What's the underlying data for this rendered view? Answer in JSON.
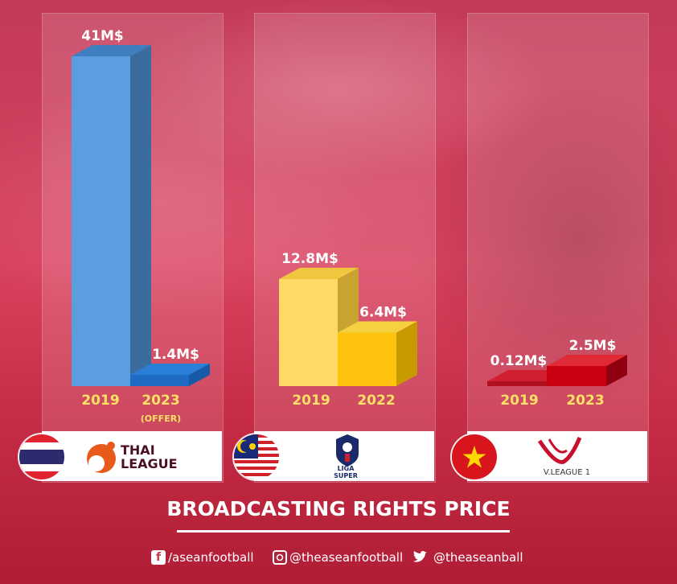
{
  "title": "BROADCASTING RIGHTS PRICE",
  "chart_data": [
    {
      "type": "bar",
      "league": "THAI LEAGUE",
      "categories": [
        "2019",
        "2023"
      ],
      "category_notes": [
        "",
        "(OFFER)"
      ],
      "values": [
        41,
        1.4
      ],
      "value_labels": [
        "41M$",
        "1.4M$"
      ],
      "unit": "M$",
      "colors": {
        "front": "#5b9ee0",
        "top": "#3f7fc0",
        "side": "#3a6d9e",
        "front2": "#1f6bc4",
        "top2": "#2a80d8",
        "side2": "#185aa6"
      }
    },
    {
      "type": "bar",
      "league": "LIGA SUPER",
      "categories": [
        "2019",
        "2022"
      ],
      "category_notes": [
        "",
        ""
      ],
      "values": [
        12.8,
        6.4
      ],
      "value_labels": [
        "12.8M$",
        "6.4M$"
      ],
      "unit": "M$",
      "colors": {
        "front": "#ffd966",
        "top": "#f0c840",
        "side": "#c9a330",
        "front2": "#ffc20e",
        "top2": "#f5d040",
        "side2": "#c99a00"
      }
    },
    {
      "type": "bar",
      "league": "V.LEAGUE 1",
      "categories": [
        "2019",
        "2023"
      ],
      "category_notes": [
        "",
        ""
      ],
      "values": [
        0.12,
        2.5
      ],
      "value_labels": [
        "0.12M$",
        "2.5M$"
      ],
      "unit": "M$",
      "colors": {
        "front": "#b01020",
        "top": "#d02030",
        "side": "#8a0a18",
        "front2": "#c80010",
        "top2": "#e02a36",
        "side2": "#900010"
      }
    }
  ],
  "logos": {
    "thai": "THAI\nLEAGUE",
    "malay": "LIGA\nSUPER",
    "viet": "V.LEAGUE 1"
  },
  "social": {
    "facebook": "/aseanfootball",
    "instagram": "@theaseanfootball",
    "twitter": "@theaseanball"
  },
  "icons": {
    "facebook": "facebook-icon",
    "instagram": "instagram-icon",
    "twitter": "twitter-icon"
  }
}
